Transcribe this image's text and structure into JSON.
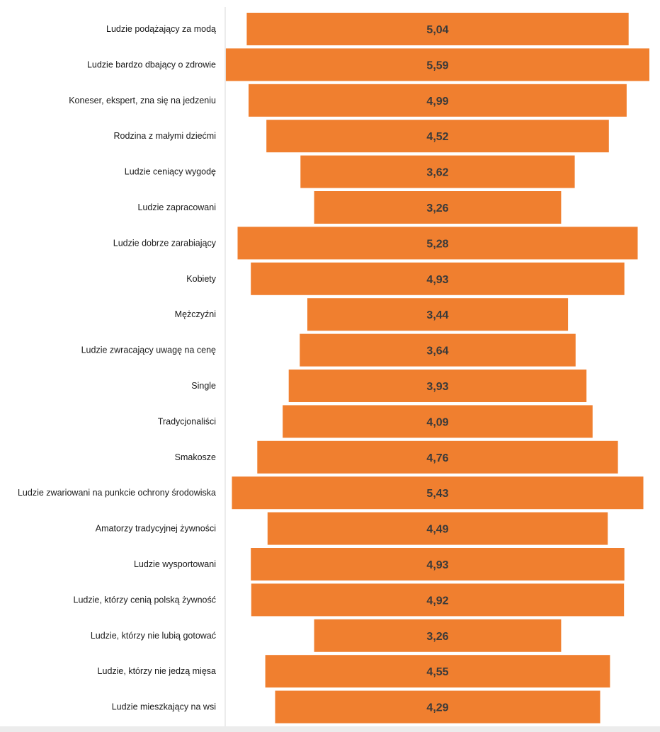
{
  "chart_data": {
    "type": "bar",
    "orientation": "horizontal-centered",
    "categories": [
      "Ludzie podążający za modą",
      "Ludzie bardzo dbający o zdrowie",
      "Koneser, ekspert, zna się na jedzeniu",
      "Rodzina z małymi dziećmi",
      "Ludzie ceniący wygodę",
      "Ludzie zapracowani",
      "Ludzie dobrze zarabiający",
      "Kobiety",
      "Mężczyźni",
      "Ludzie zwracający uwagę na cenę",
      "Single",
      "Tradycjonaliści",
      "Smakosze",
      "Ludzie zwariowani na punkcie ochrony środowiska",
      "Amatorzy tradycyjnej żywności",
      "Ludzie wysportowani",
      "Ludzie, którzy cenią polską żywność",
      "Ludzie, którzy nie lubią gotować",
      "Ludzie, którzy nie jedzą mięsa",
      "Ludzie mieszkający na wsi"
    ],
    "values": [
      5.04,
      5.59,
      4.99,
      4.52,
      3.62,
      3.26,
      5.28,
      4.93,
      3.44,
      3.64,
      3.93,
      4.09,
      4.76,
      5.43,
      4.49,
      4.93,
      4.92,
      3.26,
      4.55,
      4.29
    ],
    "value_labels": [
      "5,04",
      "5,59",
      "4,99",
      "4,52",
      "3,62",
      "3,26",
      "5,28",
      "4,93",
      "3,44",
      "3,64",
      "3,93",
      "4,09",
      "4,76",
      "5,43",
      "4,49",
      "4,93",
      "4,92",
      "3,26",
      "4,55",
      "4,29"
    ],
    "title": "",
    "xlabel": "",
    "ylabel": "",
    "grid": false,
    "legend": "none",
    "colors": {
      "bar": "#F07F2F",
      "bar_label": "#3a3a3a",
      "category_label": "#1a1a1a",
      "axis_line": "#d9d9d9"
    }
  }
}
